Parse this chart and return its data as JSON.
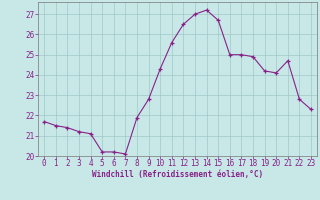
{
  "x": [
    0,
    1,
    2,
    3,
    4,
    5,
    6,
    7,
    8,
    9,
    10,
    11,
    12,
    13,
    14,
    15,
    16,
    17,
    18,
    19,
    20,
    21,
    22,
    23
  ],
  "y": [
    21.7,
    21.5,
    21.4,
    21.2,
    21.1,
    20.2,
    20.2,
    20.1,
    21.9,
    22.8,
    24.3,
    25.6,
    26.5,
    27.0,
    27.2,
    26.7,
    25.0,
    25.0,
    24.9,
    24.2,
    24.1,
    24.7,
    22.8,
    22.3
  ],
  "ylim": [
    20.0,
    27.6
  ],
  "xlim": [
    -0.5,
    23.5
  ],
  "yticks": [
    20,
    21,
    22,
    23,
    24,
    25,
    26,
    27
  ],
  "xticks": [
    0,
    1,
    2,
    3,
    4,
    5,
    6,
    7,
    8,
    9,
    10,
    11,
    12,
    13,
    14,
    15,
    16,
    17,
    18,
    19,
    20,
    21,
    22,
    23
  ],
  "xlabel": "Windchill (Refroidissement éolien,°C)",
  "bg_color": "#c8e8e8",
  "grid_color": "#a0c8c8",
  "line_color": "#882288",
  "marker_color": "#882288",
  "text_color": "#882288",
  "xlabel_fontsize": 5.5,
  "tick_fontsize": 5.5,
  "marker_size": 3.0,
  "linewidth": 0.8
}
